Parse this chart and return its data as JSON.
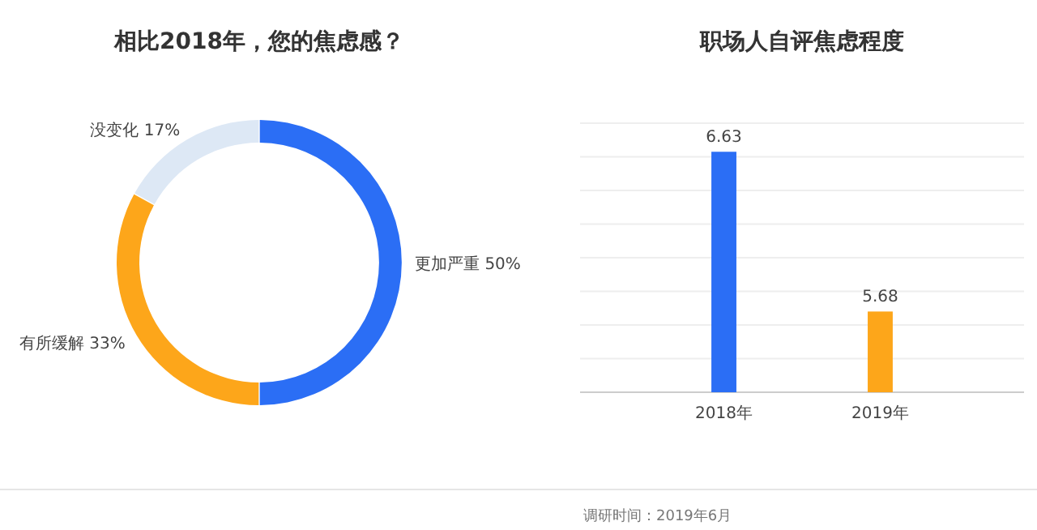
{
  "chart_data": [
    {
      "type": "donut",
      "title": "相比2018年，您的焦虑感？",
      "categories": [
        "更加严重",
        "有所缓解",
        "没变化"
      ],
      "values": [
        50,
        33,
        17
      ],
      "colors": [
        "#2b6ef5",
        "#fda61a",
        "#dde8f5"
      ],
      "value_labels": [
        "50%",
        "33%",
        "17%"
      ],
      "legend": false
    },
    {
      "type": "bar",
      "title": "职场人自评焦虑程度",
      "categories": [
        "2018年",
        "2019年"
      ],
      "values": [
        6.63,
        5.68
      ],
      "colors": [
        "#2b6ef5",
        "#fda61a"
      ],
      "data_labels": true,
      "ylim": [
        5.2,
        6.8
      ],
      "yticks": [
        {
          "value": 5.2,
          "label": null
        },
        {
          "value": 5.4,
          "label": null
        },
        {
          "value": 5.6,
          "label": null
        },
        {
          "value": 5.8,
          "label": null
        },
        {
          "value": 6.0,
          "label": null
        },
        {
          "value": 6.2,
          "label": null
        },
        {
          "value": 6.4,
          "label": null
        },
        {
          "value": 6.6,
          "label": null
        },
        {
          "value": 6.8,
          "label": null
        }
      ],
      "grid": "y",
      "tick_labels": "x",
      "annotations": [
        "调研时间：2019年6月"
      ]
    }
  ]
}
